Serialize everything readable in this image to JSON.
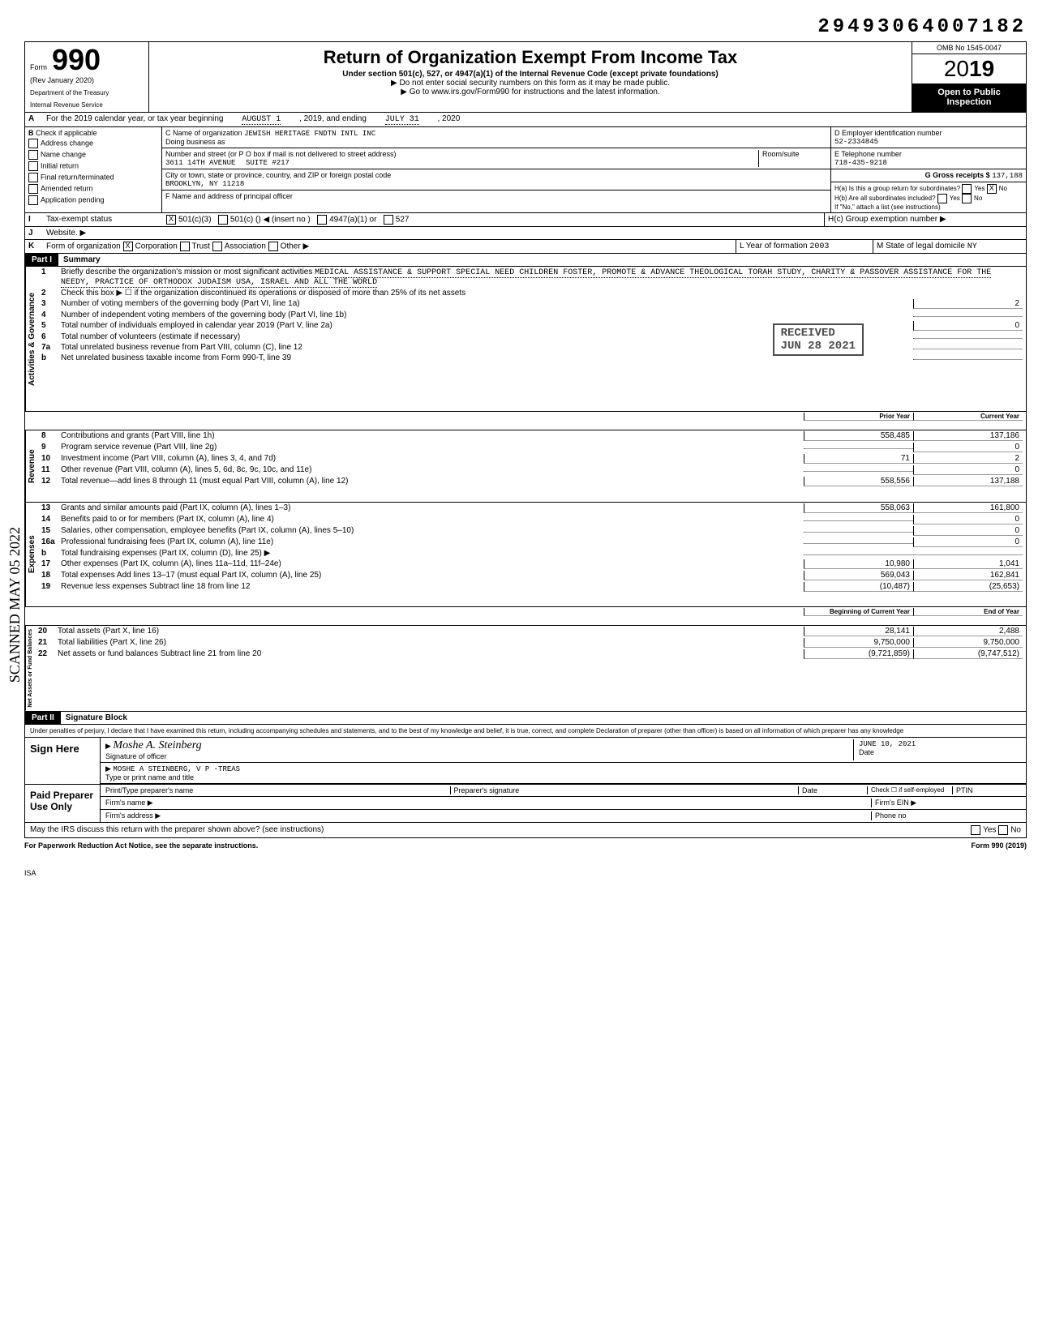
{
  "doc_id": "29493064007182",
  "form": {
    "number": "990",
    "rev": "(Rev January 2020)",
    "dept1": "Department of the Treasury",
    "dept2": "Internal Revenue Service",
    "title": "Return of Organization Exempt From Income Tax",
    "subtitle": "Under section 501(c), 527, or 4947(a)(1) of the Internal Revenue Code (except private foundations)",
    "warn": "▶ Do not enter social security numbers on this form as it may be made public.",
    "goto": "▶ Go to www.irs.gov/Form990 for instructions and the latest information.",
    "omb": "OMB No 1545-0047",
    "year_prefix": "20",
    "year_bold": "19",
    "open1": "Open to Public",
    "open2": "Inspection"
  },
  "line_a": {
    "label": "A",
    "text": "For the 2019 calendar year, or tax year beginning",
    "begin": "AUGUST 1",
    "mid": ", 2019, and ending",
    "end": "JULY 31",
    "endyear": ", 2020"
  },
  "section_b": {
    "b_label": "B",
    "check_if": "Check if applicable",
    "opts": [
      "Address change",
      "Name change",
      "Initial return",
      "Final return/terminated",
      "Amended return",
      "Application pending"
    ],
    "c_label": "C Name of organization",
    "org": "JEWISH HERITAGE FNDTN INTL INC",
    "dba_label": "Doing business as",
    "addr_label": "Number and street (or P O box if mail is not delivered to street address)",
    "addr": "3611 14th AVENUE",
    "room_label": "Room/suite",
    "suite": "SUITE #217",
    "city_label": "City or town, state or province, country, and ZIP or foreign postal code",
    "city": "BROOKLYN, NY 11218",
    "f_label": "F Name and address of principal officer",
    "d_label": "D Employer identification number",
    "ein": "52-2334845",
    "e_label": "E Telephone number",
    "phone": "718-435-9218",
    "g_label": "G Gross receipts $",
    "gross": "137,188",
    "ha": "H(a) Is this a group return for subordinates?",
    "hb": "H(b) Are all subordinates included?",
    "hb_note": "If \"No,\" attach a list (see instructions)",
    "hc": "H(c) Group exemption number ▶",
    "yes": "Yes",
    "no": "No"
  },
  "line_i": {
    "label": "I",
    "text": "Tax-exempt status",
    "opt1": "501(c)(3)",
    "opt2": "501(c) (",
    "insert": ") ◀ (insert no )",
    "opt3": "4947(a)(1) or",
    "opt4": "527"
  },
  "line_j": {
    "label": "J",
    "text": "Website. ▶"
  },
  "line_k": {
    "label": "K",
    "text": "Form of organization",
    "corp": "Corporation",
    "trust": "Trust",
    "assoc": "Association",
    "other": "Other ▶",
    "l": "L Year of formation",
    "year": "2003",
    "m": "M State of legal domicile",
    "state": "NY"
  },
  "part1": {
    "label": "Part I",
    "title": "Summary",
    "l1_num": "1",
    "l1": "Briefly describe the organization's mission or most significant activities",
    "l1_val": "MEDICAL ASSISTANCE & SUPPORT SPECIAL NEED CHILDREN FOSTER, PROMOTE & ADVANCE THEOLOGICAL TORAH STUDY, CHARITY & PASSOVER ASSISTANCE FOR THE NEEDY, PRACTICE OF ORTHODOX JUDAISM USA, ISRAEL AND ALL THE WORLD",
    "l2_num": "2",
    "l2": "Check this box ▶ ☐ if the organization discontinued its operations or disposed of more than 25% of its net assets",
    "l3_num": "3",
    "l3": "Number of voting members of the governing body (Part VI, line 1a)",
    "l3_v": "2",
    "l4_num": "4",
    "l4": "Number of independent voting members of the governing body (Part VI, line 1b)",
    "l5_num": "5",
    "l5": "Total number of individuals employed in calendar year 2019 (Part V, line 2a)",
    "l5_v": "0",
    "l6_num": "6",
    "l6": "Total number of volunteers (estimate if necessary)",
    "l7a_num": "7a",
    "l7a": "Total unrelated business revenue from Part VIII, column (C), line 12",
    "l7b_num": "b",
    "l7b": "Net unrelated business taxable income from Form 990-T, line 39",
    "col1_hdr": "Prior Year",
    "col2_hdr": "Current Year",
    "rows": [
      {
        "n": "8",
        "d": "Contributions and grants (Part VIII, line 1h)",
        "c1": "558,485",
        "c2": "137,186"
      },
      {
        "n": "9",
        "d": "Program service revenue (Part VIII, line 2g)",
        "c1": "",
        "c2": "0"
      },
      {
        "n": "10",
        "d": "Investment income (Part VIII, column (A), lines 3, 4, and 7d)",
        "c1": "71",
        "c2": "2"
      },
      {
        "n": "11",
        "d": "Other revenue (Part VIII, column (A), lines 5, 6d, 8c, 9c, 10c, and 11e)",
        "c1": "",
        "c2": "0"
      },
      {
        "n": "12",
        "d": "Total revenue—add lines 8 through 11 (must equal Part VIII, column (A), line 12)",
        "c1": "558,556",
        "c2": "137,188"
      },
      {
        "n": "13",
        "d": "Grants and similar amounts paid (Part IX, column (A), lines 1–3)",
        "c1": "558,063",
        "c2": "161,800"
      },
      {
        "n": "14",
        "d": "Benefits paid to or for members (Part IX, column (A), line 4)",
        "c1": "",
        "c2": "0"
      },
      {
        "n": "15",
        "d": "Salaries, other compensation, employee benefits (Part IX, column (A), lines 5–10)",
        "c1": "",
        "c2": "0"
      },
      {
        "n": "16a",
        "d": "Professional fundraising fees (Part IX, column (A), line 11e)",
        "c1": "",
        "c2": "0"
      },
      {
        "n": "b",
        "d": "Total fundraising expenses (Part IX, column (D), line 25) ▶",
        "c1": "",
        "c2": ""
      },
      {
        "n": "17",
        "d": "Other expenses (Part IX, column (A), lines 11a–11d, 11f–24e)",
        "c1": "10,980",
        "c2": "1,041"
      },
      {
        "n": "18",
        "d": "Total expenses Add lines 13–17 (must equal Part IX, column (A), line 25)",
        "c1": "569,043",
        "c2": "162,841"
      },
      {
        "n": "19",
        "d": "Revenue less expenses Subtract line 18 from line 12",
        "c1": "(10,487)",
        "c2": "(25,653)"
      }
    ],
    "bal_hdr1": "Beginning of Current Year",
    "bal_hdr2": "End of Year",
    "bal_rows": [
      {
        "n": "20",
        "d": "Total assets (Part X, line 16)",
        "c1": "28,141",
        "c2": "2,488"
      },
      {
        "n": "21",
        "d": "Total liabilities (Part X, line 26)",
        "c1": "9,750,000",
        "c2": "9,750,000"
      },
      {
        "n": "22",
        "d": "Net assets or fund balances Subtract line 21 from line 20",
        "c1": "(9,721,859)",
        "c2": "(9,747,512)"
      }
    ],
    "vert_gov": "Activities & Governance",
    "vert_rev": "Revenue",
    "vert_exp": "Expenses",
    "vert_bal": "Net Assets or Fund Balances",
    "received": "RECEIVED",
    "received_date": "JUN 28 2021"
  },
  "part2": {
    "label": "Part II",
    "title": "Signature Block",
    "perjury": "Under penalties of perjury, I declare that I have examined this return, including accompanying schedules and statements, and to the best of my knowledge and belief, it is true, correct, and complete Declaration of preparer (other than officer) is based on all information of which preparer has any knowledge",
    "sign_here": "Sign Here",
    "sig_label": "Signature of officer",
    "date_label": "Date",
    "date": "JUNE 10, 2021",
    "name": "MOSHE A STEINBERG, V P -TREAS",
    "name_label": "Type or print name and title",
    "paid": "Paid Preparer Use Only",
    "prep_name": "Print/Type preparer's name",
    "prep_sig": "Preparer's signature",
    "prep_date": "Date",
    "check_self": "Check ☐ if self-employed",
    "ptin": "PTIN",
    "firm_name": "Firm's name ▶",
    "firm_ein": "Firm's EIN ▶",
    "firm_addr": "Firm's address ▶",
    "phone_no": "Phone no",
    "discuss": "May the IRS discuss this return with the preparer shown above? (see instructions)"
  },
  "footer": {
    "left": "For Paperwork Reduction Act Notice, see the separate instructions.",
    "right": "Form 990 (2019)"
  },
  "scanned": "SCANNED MAY 05 2022",
  "isa": "ISA"
}
